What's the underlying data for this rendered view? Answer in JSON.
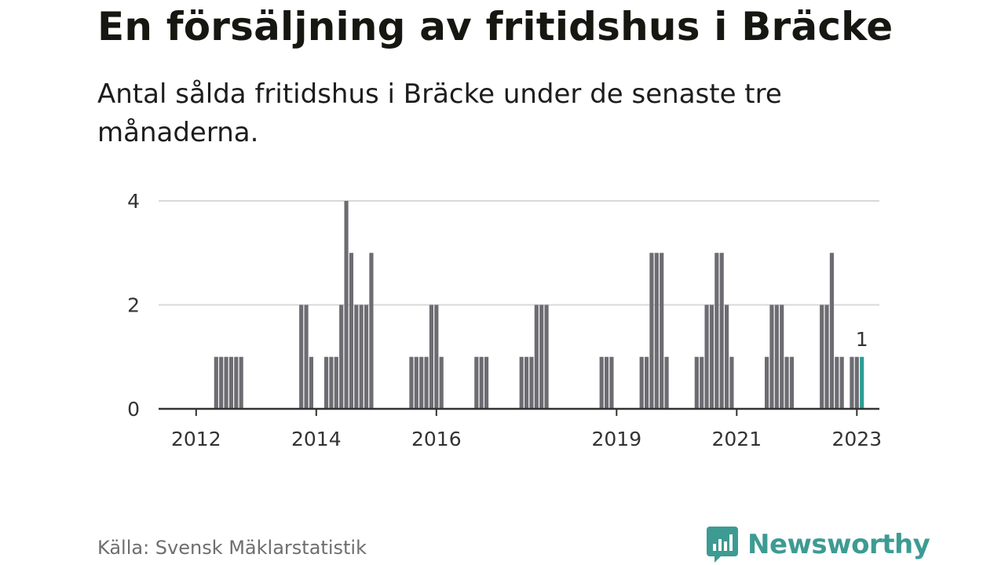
{
  "title": "En försäljning av fritidshus i Bräcke",
  "subtitle": "Antal sålda fritidshus i Bräcke under de senaste tre månaderna.",
  "source": "Källa: Svensk Mäklarstatistik",
  "brand": {
    "name": "Newsworthy",
    "icon": "newsworthy-logo-icon",
    "color": "#3d9b93"
  },
  "colors": {
    "bar": "#6c6c72",
    "highlight": "#2a9d93",
    "grid": "#d9d9d9",
    "axis": "#333333"
  },
  "chart_data": {
    "type": "bar",
    "title": "En försäljning av fritidshus i Bräcke",
    "subtitle": "Antal sålda fritidshus i Bräcke under de senaste tre månaderna.",
    "xlabel": "",
    "ylabel": "",
    "ylim": [
      0,
      4
    ],
    "yticks": [
      0,
      2,
      4
    ],
    "grid": true,
    "x_axis": {
      "type": "date",
      "start": "2011-06",
      "end": "2023-06"
    },
    "xticks": [
      "2012",
      "2014",
      "2016",
      "2019",
      "2021",
      "2023"
    ],
    "highlight_label": "1",
    "series": [
      {
        "values": [
          [
            "2012-05",
            1
          ],
          [
            "2012-06",
            1
          ],
          [
            "2012-07",
            1
          ],
          [
            "2012-08",
            1
          ],
          [
            "2012-09",
            1
          ],
          [
            "2012-10",
            1
          ],
          [
            "2013-10",
            2
          ],
          [
            "2013-11",
            2
          ],
          [
            "2013-12",
            1
          ],
          [
            "2014-03",
            1
          ],
          [
            "2014-04",
            1
          ],
          [
            "2014-05",
            1
          ],
          [
            "2014-06",
            2
          ],
          [
            "2014-07",
            4
          ],
          [
            "2014-08",
            3
          ],
          [
            "2014-09",
            2
          ],
          [
            "2014-10",
            2
          ],
          [
            "2014-11",
            2
          ],
          [
            "2014-12",
            3
          ],
          [
            "2015-08",
            1
          ],
          [
            "2015-09",
            1
          ],
          [
            "2015-10",
            1
          ],
          [
            "2015-11",
            1
          ],
          [
            "2015-12",
            2
          ],
          [
            "2016-01",
            2
          ],
          [
            "2016-02",
            1
          ],
          [
            "2016-09",
            1
          ],
          [
            "2016-10",
            1
          ],
          [
            "2016-11",
            1
          ],
          [
            "2017-06",
            1
          ],
          [
            "2017-07",
            1
          ],
          [
            "2017-08",
            1
          ],
          [
            "2017-09",
            2
          ],
          [
            "2017-10",
            2
          ],
          [
            "2017-11",
            2
          ],
          [
            "2018-10",
            1
          ],
          [
            "2018-11",
            1
          ],
          [
            "2018-12",
            1
          ],
          [
            "2019-06",
            1
          ],
          [
            "2019-07",
            1
          ],
          [
            "2019-08",
            3
          ],
          [
            "2019-09",
            3
          ],
          [
            "2019-10",
            3
          ],
          [
            "2019-11",
            1
          ],
          [
            "2020-05",
            1
          ],
          [
            "2020-06",
            1
          ],
          [
            "2020-07",
            2
          ],
          [
            "2020-08",
            2
          ],
          [
            "2020-09",
            3
          ],
          [
            "2020-10",
            3
          ],
          [
            "2020-11",
            2
          ],
          [
            "2020-12",
            1
          ],
          [
            "2021-07",
            1
          ],
          [
            "2021-08",
            2
          ],
          [
            "2021-09",
            2
          ],
          [
            "2021-10",
            2
          ],
          [
            "2021-11",
            1
          ],
          [
            "2021-12",
            1
          ],
          [
            "2022-06",
            2
          ],
          [
            "2022-07",
            2
          ],
          [
            "2022-08",
            3
          ],
          [
            "2022-09",
            1
          ],
          [
            "2022-10",
            1
          ],
          [
            "2022-12",
            1
          ],
          [
            "2023-01",
            1
          ],
          [
            "2023-02",
            1
          ]
        ]
      }
    ]
  }
}
